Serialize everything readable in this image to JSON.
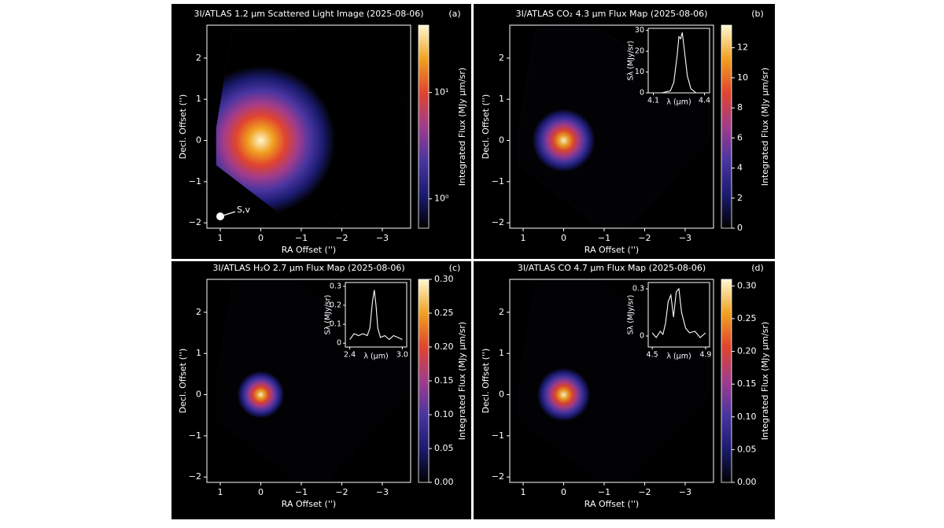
{
  "chart_data": [
    {
      "type": "heatmap",
      "title": "3I/ATLAS 1.2 μm Scattered Light Image (2025-08-06)",
      "panel_label": "(a)",
      "xlabel": "RA Offset ('')",
      "ylabel": "Decl. Offset ('')",
      "xlim": [
        1.33,
        -3.7
      ],
      "ylim": [
        -2.13,
        2.8
      ],
      "xticks": [
        1,
        0,
        {
          "value": -1,
          "label": "−1"
        },
        {
          "value": -2,
          "label": "−2"
        },
        {
          "value": -3,
          "label": "−3"
        }
      ],
      "yticks": [
        {
          "value": -2,
          "label": "−2"
        },
        {
          "value": -1,
          "label": "−1"
        },
        0,
        1,
        2
      ],
      "annotation": "S,v",
      "colorbar": {
        "label": "Integrated Flux (MJy μm/sr)",
        "log": true,
        "lim": [
          0.53,
          43
        ],
        "ticks": [
          {
            "value": 1,
            "label": "10⁰"
          },
          {
            "value": 10,
            "label": "10¹"
          }
        ],
        "colors": [
          "#000000",
          "#1b1b70",
          "#4a35a0",
          "#a03c8c",
          "#e0442e",
          "#f0a020",
          "#fff8d0"
        ]
      }
    },
    {
      "type": "heatmap",
      "title": "3I/ATLAS CO₂ 4.3 μm Flux Map (2025-08-06)",
      "panel_label": "(b)",
      "xlabel": "RA Offset ('')",
      "ylabel": "Decl. Offset ('')",
      "xlim": [
        1.33,
        -3.7
      ],
      "ylim": [
        -2.13,
        2.8
      ],
      "xticks": [
        1,
        0,
        {
          "value": -1,
          "label": "−1"
        },
        {
          "value": -2,
          "label": "−2"
        },
        {
          "value": -3,
          "label": "−3"
        }
      ],
      "yticks": [
        {
          "value": -2,
          "label": "−2"
        },
        {
          "value": -1,
          "label": "−1"
        },
        0,
        1,
        2
      ],
      "colorbar": {
        "label": "Integrated Flux (MJy μm/sr)",
        "log": false,
        "lim": [
          0,
          13.5
        ],
        "ticks": [
          0,
          2,
          4,
          6,
          8,
          10,
          12
        ],
        "colors": [
          "#000000",
          "#1b1b70",
          "#4a35a0",
          "#a03c8c",
          "#e0442e",
          "#f0a020",
          "#fff8d0"
        ]
      },
      "inset": {
        "type": "line",
        "xlabel": "λ (μm)",
        "ylabel": "Sλ (MJy/sr)",
        "xlim": [
          4.07,
          4.43
        ],
        "ylim": [
          0,
          31
        ],
        "xticks": [
          4.1,
          4.4
        ],
        "yticks": [
          0,
          10,
          20,
          30
        ],
        "x": [
          4.1,
          4.15,
          4.2,
          4.22,
          4.24,
          4.25,
          4.26,
          4.27,
          4.28,
          4.3,
          4.32,
          4.35,
          4.4
        ],
        "values": [
          0,
          0,
          1,
          5,
          18,
          27,
          26,
          29,
          22,
          8,
          2,
          0,
          0
        ]
      }
    },
    {
      "type": "heatmap",
      "title": "3I/ATLAS H₂O 2.7 μm Flux Map (2025-08-06)",
      "panel_label": "(c)",
      "xlabel": "RA Offset ('')",
      "ylabel": "Decl. Offset ('')",
      "xlim": [
        1.33,
        -3.7
      ],
      "ylim": [
        -2.13,
        2.8
      ],
      "xticks": [
        1,
        0,
        {
          "value": -1,
          "label": "−1"
        },
        {
          "value": -2,
          "label": "−2"
        },
        {
          "value": -3,
          "label": "−3"
        }
      ],
      "yticks": [
        {
          "value": -2,
          "label": "−2"
        },
        {
          "value": -1,
          "label": "−1"
        },
        0,
        1,
        2
      ],
      "colorbar": {
        "label": "Integrated Flux (MJy μm/sr)",
        "log": false,
        "lim": [
          0,
          0.3
        ],
        "ticks": [
          {
            "value": 0,
            "label": "0.00"
          },
          0.05,
          {
            "value": 0.1,
            "label": "0.10"
          },
          0.15,
          {
            "value": 0.2,
            "label": "0.20"
          },
          0.25,
          {
            "value": 0.3,
            "label": "0.30"
          }
        ],
        "colors": [
          "#000000",
          "#1b1b70",
          "#4a35a0",
          "#a03c8c",
          "#e0442e",
          "#f0a020",
          "#fff8d0"
        ]
      },
      "inset": {
        "type": "line",
        "xlabel": "λ (μm)",
        "ylabel": "Sλ (MJy/sr)",
        "xlim": [
          2.35,
          3.05
        ],
        "ylim": [
          -0.02,
          0.32
        ],
        "xticks": [
          2.4,
          {
            "value": 3,
            "label": "3.0"
          }
        ],
        "yticks": [
          0,
          0.1,
          0.2,
          0.3
        ],
        "x": [
          2.4,
          2.45,
          2.5,
          2.55,
          2.6,
          2.63,
          2.66,
          2.68,
          2.7,
          2.72,
          2.75,
          2.8,
          2.85,
          2.9,
          2.95,
          3.0
        ],
        "values": [
          0.02,
          0.05,
          0.04,
          0.05,
          0.04,
          0.08,
          0.22,
          0.28,
          0.2,
          0.08,
          0.03,
          0.04,
          0.02,
          0.04,
          0.03,
          0.02
        ]
      }
    },
    {
      "type": "heatmap",
      "title": "3I/ATLAS CO 4.7 μm Flux Map (2025-08-06)",
      "panel_label": "(d)",
      "xlabel": "RA Offset ('')",
      "ylabel": "Decl. Offset ('')",
      "xlim": [
        1.33,
        -3.7
      ],
      "ylim": [
        -2.13,
        2.8
      ],
      "xticks": [
        1,
        0,
        {
          "value": -1,
          "label": "−1"
        },
        {
          "value": -2,
          "label": "−2"
        },
        {
          "value": -3,
          "label": "−3"
        }
      ],
      "yticks": [
        {
          "value": -2,
          "label": "−2"
        },
        {
          "value": -1,
          "label": "−1"
        },
        0,
        1,
        2
      ],
      "colorbar": {
        "label": "Integrated Flux (MJy μm/sr)",
        "log": false,
        "lim": [
          0,
          0.31
        ],
        "ticks": [
          {
            "value": 0,
            "label": "0.00"
          },
          0.05,
          {
            "value": 0.1,
            "label": "0.10"
          },
          0.15,
          {
            "value": 0.2,
            "label": "0.20"
          },
          0.25,
          {
            "value": 0.3,
            "label": "0.30"
          }
        ],
        "colors": [
          "#000000",
          "#1b1b70",
          "#4a35a0",
          "#a03c8c",
          "#e0442e",
          "#f0a020",
          "#fff8d0"
        ]
      },
      "inset": {
        "type": "line",
        "xlabel": "λ (μm)",
        "ylabel": "Sλ (MJy/sr)",
        "xlim": [
          4.47,
          4.93
        ],
        "ylim": [
          -0.07,
          0.34
        ],
        "xticks": [
          4.5,
          4.9
        ],
        "yticks": [
          0,
          0.3
        ],
        "x": [
          4.5,
          4.53,
          4.56,
          4.58,
          4.6,
          4.62,
          4.64,
          4.66,
          4.68,
          4.7,
          4.72,
          4.75,
          4.78,
          4.82,
          4.86,
          4.9
        ],
        "values": [
          0.02,
          -0.01,
          0.03,
          0.01,
          0.08,
          0.22,
          0.26,
          0.12,
          0.28,
          0.3,
          0.15,
          0.05,
          0.02,
          0.03,
          -0.01,
          0.02
        ]
      }
    }
  ]
}
